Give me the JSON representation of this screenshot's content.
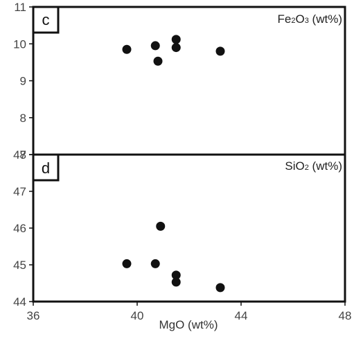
{
  "chart_data": [
    {
      "type": "scatter",
      "panel_label": "c",
      "title_parts": [
        "Fe",
        "2",
        "O",
        "3",
        " (wt%)"
      ],
      "title_sub_index": [
        1,
        3
      ],
      "xlim": [
        36,
        48
      ],
      "ylim": [
        7,
        11
      ],
      "yticks": [
        7,
        8,
        9,
        10,
        11
      ],
      "x": [
        39.6,
        40.7,
        40.8,
        41.5,
        41.5,
        43.2
      ],
      "y": [
        9.85,
        9.95,
        9.53,
        10.12,
        9.9,
        9.8
      ],
      "color": "#111111"
    },
    {
      "type": "scatter",
      "panel_label": "d",
      "title_parts": [
        "SiO",
        "2",
        " (wt%)"
      ],
      "title_sub_index": [
        1
      ],
      "xlim": [
        36,
        48
      ],
      "ylim": [
        44,
        48
      ],
      "yticks": [
        44,
        45,
        46,
        47,
        48
      ],
      "xticks": [
        36,
        40,
        44,
        48
      ],
      "x": [
        39.6,
        40.7,
        40.9,
        41.5,
        41.5,
        43.2
      ],
      "y": [
        45.03,
        45.03,
        46.05,
        44.72,
        44.53,
        44.38
      ],
      "xlabel": "MgO (wt%)",
      "color": "#111111"
    }
  ]
}
